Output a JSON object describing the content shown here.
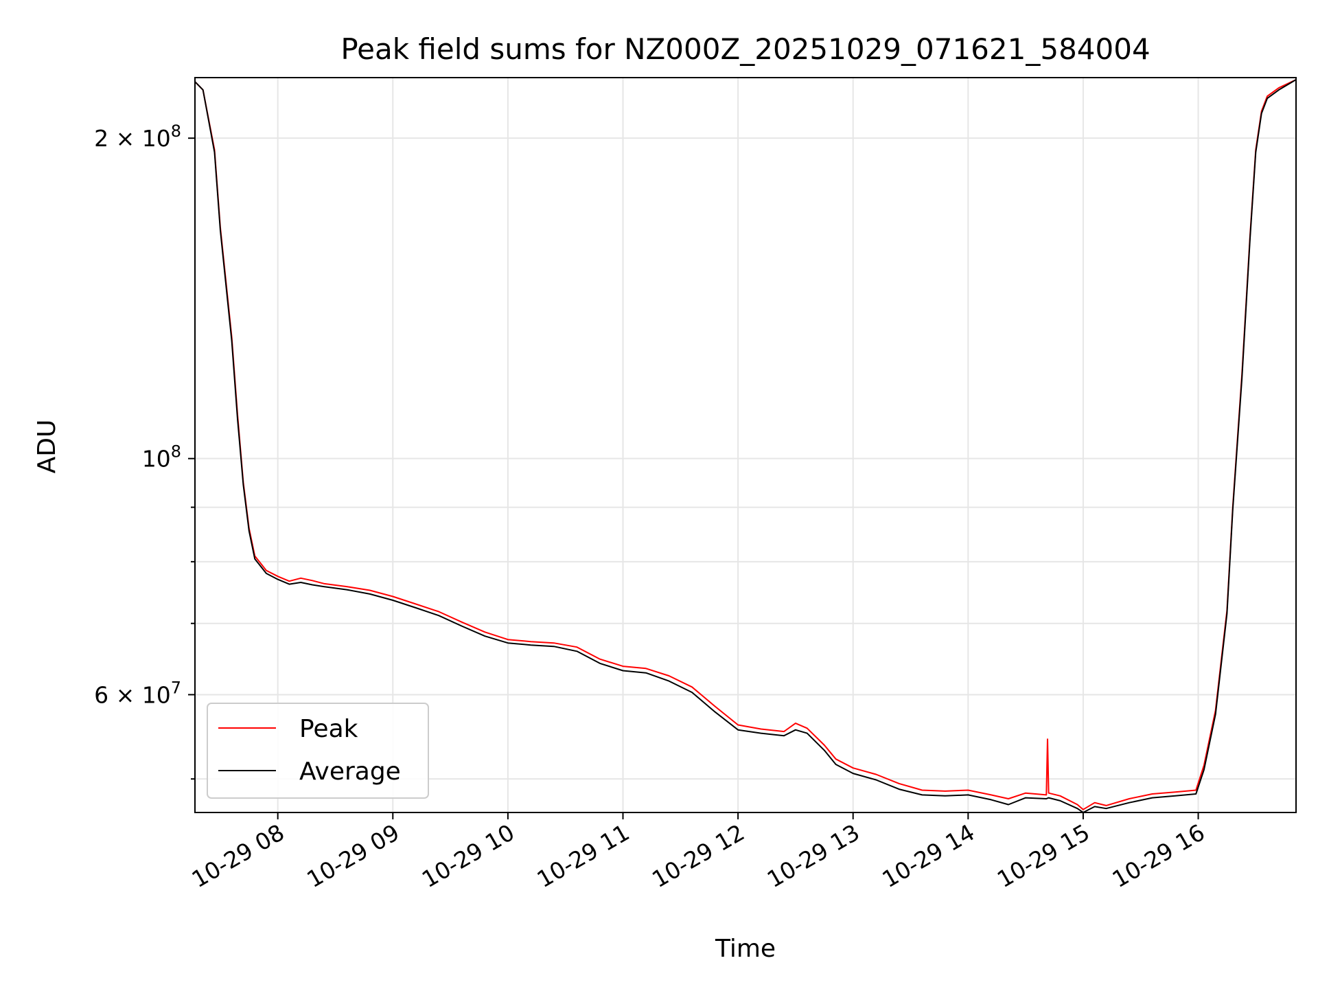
{
  "chart_data": {
    "type": "line",
    "title": "Peak field sums for NZ000Z_20251029_071621_584004",
    "xlabel": "Time",
    "ylabel": "ADU",
    "yscale": "log",
    "ylim": [
      46500000,
      228000000
    ],
    "xlim_hours": [
      7.28,
      16.85
    ],
    "x_ticks": [
      {
        "label": "10-29 08",
        "hour": 8
      },
      {
        "label": "10-29 09",
        "hour": 9
      },
      {
        "label": "10-29 10",
        "hour": 10
      },
      {
        "label": "10-29 11",
        "hour": 11
      },
      {
        "label": "10-29 12",
        "hour": 12
      },
      {
        "label": "10-29 13",
        "hour": 13
      },
      {
        "label": "10-29 14",
        "hour": 14
      },
      {
        "label": "10-29 15",
        "hour": 15
      },
      {
        "label": "10-29 16",
        "hour": 16
      }
    ],
    "y_ticks": [
      {
        "value": 200000000,
        "base": "2 × 10",
        "exp": "8"
      },
      {
        "value": 100000000,
        "base": "10",
        "exp": "8"
      },
      {
        "value": 60000000,
        "base": "6 × 10",
        "exp": "7"
      }
    ],
    "y_minor_ticks": [
      50000000,
      70000000,
      80000000,
      90000000
    ],
    "grid": true,
    "legend_position": "lower-left",
    "series": [
      {
        "name": "Peak",
        "color": "#ff0000",
        "x_hours": [
          7.28,
          7.35,
          7.45,
          7.5,
          7.6,
          7.65,
          7.7,
          7.75,
          7.8,
          7.9,
          8.0,
          8.1,
          8.2,
          8.3,
          8.4,
          8.6,
          8.8,
          9.0,
          9.2,
          9.4,
          9.6,
          9.8,
          10.0,
          10.2,
          10.4,
          10.6,
          10.8,
          11.0,
          11.2,
          11.4,
          11.6,
          11.8,
          12.0,
          12.2,
          12.4,
          12.5,
          12.6,
          12.75,
          12.85,
          13.0,
          13.2,
          13.4,
          13.6,
          13.8,
          14.0,
          14.2,
          14.35,
          14.5,
          14.68,
          14.69,
          14.7,
          14.8,
          14.95,
          15.0,
          15.1,
          15.2,
          15.4,
          15.6,
          15.8,
          15.98,
          16.05,
          16.15,
          16.25,
          16.3,
          16.38,
          16.45,
          16.5,
          16.55,
          16.6,
          16.7,
          16.85
        ],
        "values": [
          226000000,
          222000000,
          195000000,
          165000000,
          130000000,
          110000000,
          95000000,
          86000000,
          81000000,
          78500000,
          77500000,
          76700000,
          77200000,
          76800000,
          76300000,
          75800000,
          75200000,
          74200000,
          73000000,
          71800000,
          70200000,
          68700000,
          67600000,
          67300000,
          67100000,
          66500000,
          64800000,
          63800000,
          63500000,
          62500000,
          61000000,
          58500000,
          56200000,
          55700000,
          55400000,
          56400000,
          55800000,
          53800000,
          52200000,
          51200000,
          50500000,
          49500000,
          48800000,
          48700000,
          48800000,
          48300000,
          47900000,
          48500000,
          48300000,
          54500000,
          48500000,
          48200000,
          47300000,
          46800000,
          47500000,
          47200000,
          47900000,
          48400000,
          48600000,
          48800000,
          51500000,
          58000000,
          72000000,
          90000000,
          120000000,
          162000000,
          195000000,
          212000000,
          219000000,
          223000000,
          227000000
        ]
      },
      {
        "name": "Average",
        "color": "#000000",
        "x_hours": [
          7.28,
          7.35,
          7.45,
          7.5,
          7.6,
          7.65,
          7.7,
          7.75,
          7.8,
          7.9,
          8.0,
          8.1,
          8.2,
          8.3,
          8.4,
          8.6,
          8.8,
          9.0,
          9.2,
          9.4,
          9.6,
          9.8,
          10.0,
          10.2,
          10.4,
          10.6,
          10.8,
          11.0,
          11.2,
          11.4,
          11.6,
          11.8,
          12.0,
          12.2,
          12.4,
          12.5,
          12.6,
          12.75,
          12.85,
          13.0,
          13.2,
          13.4,
          13.6,
          13.8,
          14.0,
          14.2,
          14.35,
          14.5,
          14.68,
          14.7,
          14.8,
          14.95,
          15.0,
          15.1,
          15.2,
          15.4,
          15.6,
          15.8,
          15.98,
          16.05,
          16.15,
          16.25,
          16.3,
          16.38,
          16.45,
          16.5,
          16.55,
          16.6,
          16.7,
          16.85
        ],
        "values": [
          226000000,
          222000000,
          194000000,
          164000000,
          129000000,
          109000000,
          94500000,
          85500000,
          80500000,
          78000000,
          77000000,
          76200000,
          76500000,
          76100000,
          75800000,
          75300000,
          74600000,
          73600000,
          72400000,
          71200000,
          69600000,
          68100000,
          67100000,
          66800000,
          66600000,
          65900000,
          64200000,
          63200000,
          62900000,
          61800000,
          60300000,
          57800000,
          55600000,
          55200000,
          54900000,
          55600000,
          55200000,
          53200000,
          51600000,
          50600000,
          49900000,
          48900000,
          48300000,
          48200000,
          48300000,
          47800000,
          47300000,
          48000000,
          47900000,
          48000000,
          47700000,
          46900000,
          46500000,
          47100000,
          46900000,
          47500000,
          48000000,
          48200000,
          48400000,
          51000000,
          57500000,
          71500000,
          89500000,
          119000000,
          161000000,
          194000000,
          211000000,
          218000000,
          222000000,
          227000000
        ]
      }
    ]
  }
}
